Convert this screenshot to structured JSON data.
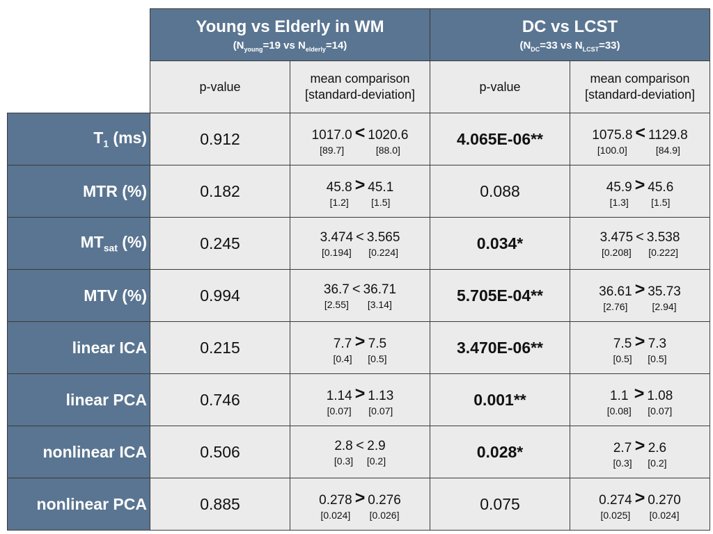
{
  "header": {
    "groups": [
      {
        "title": "Young vs Elderly in WM",
        "subtitle": [
          "(N",
          "young",
          "=19 vs N",
          "elderly",
          "=14)"
        ]
      },
      {
        "title": "DC vs LCST",
        "subtitle": [
          "(N",
          "DC",
          "=33 vs N",
          "LCST",
          "=33)"
        ]
      }
    ],
    "subheaders": [
      [
        "p-value"
      ],
      [
        "mean comparison",
        "[standard-deviation]"
      ],
      [
        "p-value"
      ],
      [
        "mean comparison",
        "[standard-deviation]"
      ]
    ]
  },
  "rows": [
    {
      "label": {
        "main": "T",
        "sub": "1",
        "after": " (ms)"
      },
      "cells": [
        {
          "p": "0.912",
          "bold": false
        },
        {
          "a": "1017.0",
          "op": "<",
          "b": "1020.6",
          "sd_a": "[89.7]",
          "sd_b": "[88.0]",
          "op_bold": true
        },
        {
          "p": "4.065E-06**",
          "bold": true
        },
        {
          "a": "1075.8",
          "op": "<",
          "b": "1129.8",
          "sd_a": "[100.0]",
          "sd_b": "[84.9]",
          "op_bold": true
        }
      ]
    },
    {
      "label": {
        "main": "MTR (%)"
      },
      "cells": [
        {
          "p": "0.182",
          "bold": false
        },
        {
          "a": "45.8",
          "op": ">",
          "b": "45.1",
          "sd_a": "[1.2]",
          "sd_b": "[1.5]",
          "op_bold": true
        },
        {
          "p": "0.088",
          "bold": false
        },
        {
          "a": "45.9",
          "op": ">",
          "b": "45.6",
          "sd_a": "[1.3]",
          "sd_b": "[1.5]",
          "op_bold": true
        }
      ]
    },
    {
      "label": {
        "main": "MT",
        "sub": "sat",
        "after": " (%)"
      },
      "cells": [
        {
          "p": "0.245",
          "bold": false
        },
        {
          "a": "3.474",
          "op": "<",
          "b": "3.565",
          "sd_a": "[0.194]",
          "sd_b": "[0.224]",
          "op_bold": false
        },
        {
          "p": "0.034*",
          "bold": true
        },
        {
          "a": "3.475",
          "op": "<",
          "b": "3.538",
          "sd_a": "[0.208]",
          "sd_b": "[0.222]",
          "op_bold": false
        }
      ]
    },
    {
      "label": {
        "main": "MTV (%)"
      },
      "cells": [
        {
          "p": "0.994",
          "bold": false
        },
        {
          "a": "36.7",
          "op": "<",
          "b": "36.71",
          "sd_a": "[2.55]",
          "sd_b": "[3.14]",
          "op_bold": false
        },
        {
          "p": "5.705E-04**",
          "bold": true
        },
        {
          "a": "36.61",
          "op": ">",
          "b": "35.73",
          "sd_a": "[2.76]",
          "sd_b": "[2.94]",
          "op_bold": true
        }
      ]
    },
    {
      "label": {
        "main": "linear ICA"
      },
      "cells": [
        {
          "p": "0.215",
          "bold": false
        },
        {
          "a": "7.7",
          "op": ">",
          "b": "7.5",
          "sd_a": "[0.4]",
          "sd_b": "[0.5]",
          "op_bold": true
        },
        {
          "p": "3.470E-06**",
          "bold": true
        },
        {
          "a": "7.5",
          "op": ">",
          "b": "7.3",
          "sd_a": "[0.5]",
          "sd_b": "[0.5]",
          "op_bold": true
        }
      ]
    },
    {
      "label": {
        "main": "linear PCA"
      },
      "cells": [
        {
          "p": "0.746",
          "bold": false
        },
        {
          "a": "1.14",
          "op": ">",
          "b": "1.13",
          "sd_a": "[0.07]",
          "sd_b": "[0.07]",
          "op_bold": true
        },
        {
          "p": "0.001**",
          "bold": true
        },
        {
          "a": "1.1",
          "op": ">",
          "b": "1.08",
          "sd_a": "[0.08]",
          "sd_b": "[0.07]",
          "op_bold": true
        }
      ]
    },
    {
      "label": {
        "main": "nonlinear ICA"
      },
      "cells": [
        {
          "p": "0.506",
          "bold": false
        },
        {
          "a": "2.8",
          "op": "<",
          "b": "2.9",
          "sd_a": "[0.3]",
          "sd_b": "[0.2]",
          "op_bold": false
        },
        {
          "p": "0.028*",
          "bold": true
        },
        {
          "a": "2.7",
          "op": ">",
          "b": "2.6",
          "sd_a": "[0.3]",
          "sd_b": "[0.2]",
          "op_bold": true
        }
      ]
    },
    {
      "label": {
        "main": "nonlinear PCA"
      },
      "cells": [
        {
          "p": "0.885",
          "bold": false
        },
        {
          "a": "0.278",
          "op": ">",
          "b": "0.276",
          "sd_a": "[0.024]",
          "sd_b": "[0.026]",
          "op_bold": true
        },
        {
          "p": "0.075",
          "bold": false
        },
        {
          "a": "0.274",
          "op": ">",
          "b": "0.270",
          "sd_a": "[0.025]",
          "sd_b": "[0.024]",
          "op_bold": true
        }
      ]
    }
  ]
}
